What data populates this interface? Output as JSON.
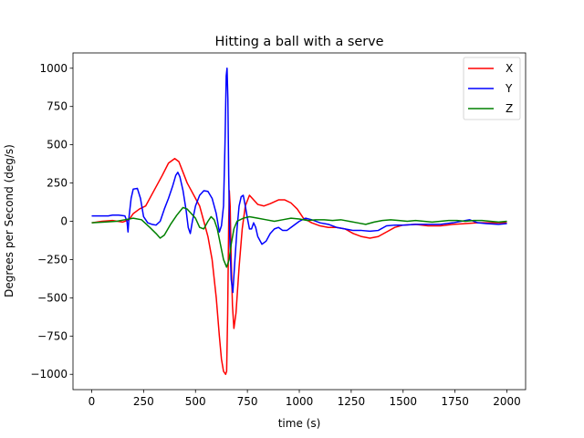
{
  "chart_data": {
    "type": "line",
    "title": "Hitting a ball with a serve",
    "xlabel": "time (s)",
    "ylabel": "Degrees per Second (deg/s)",
    "xlim": [
      -90,
      2090
    ],
    "ylim": [
      -1100,
      1100
    ],
    "xticks": [
      0,
      250,
      500,
      750,
      1000,
      1250,
      1500,
      1750,
      2000
    ],
    "yticks": [
      -1000,
      -750,
      -500,
      -250,
      0,
      250,
      500,
      750,
      1000
    ],
    "yticklabels": [
      "−1000",
      "−750",
      "−500",
      "−250",
      "0",
      "250",
      "500",
      "750",
      "1000"
    ],
    "grid": false,
    "legend_position": "top-right",
    "series": [
      {
        "name": "X",
        "color": "#ff0000",
        "points": [
          [
            0,
            -10
          ],
          [
            50,
            0
          ],
          [
            100,
            5
          ],
          [
            150,
            -5
          ],
          [
            180,
            10
          ],
          [
            200,
            50
          ],
          [
            230,
            80
          ],
          [
            260,
            100
          ],
          [
            300,
            200
          ],
          [
            340,
            300
          ],
          [
            370,
            380
          ],
          [
            400,
            410
          ],
          [
            420,
            390
          ],
          [
            440,
            320
          ],
          [
            460,
            250
          ],
          [
            480,
            200
          ],
          [
            500,
            150
          ],
          [
            520,
            100
          ],
          [
            540,
            0
          ],
          [
            560,
            -100
          ],
          [
            580,
            -250
          ],
          [
            600,
            -500
          ],
          [
            615,
            -750
          ],
          [
            625,
            -900
          ],
          [
            635,
            -980
          ],
          [
            645,
            -1000
          ],
          [
            650,
            -980
          ],
          [
            655,
            -600
          ],
          [
            660,
            0
          ],
          [
            663,
            200
          ],
          [
            667,
            100
          ],
          [
            672,
            -250
          ],
          [
            678,
            -550
          ],
          [
            685,
            -700
          ],
          [
            695,
            -600
          ],
          [
            710,
            -300
          ],
          [
            725,
            -50
          ],
          [
            740,
            100
          ],
          [
            760,
            170
          ],
          [
            780,
            140
          ],
          [
            800,
            110
          ],
          [
            830,
            100
          ],
          [
            860,
            115
          ],
          [
            900,
            140
          ],
          [
            930,
            140
          ],
          [
            960,
            120
          ],
          [
            990,
            80
          ],
          [
            1020,
            20
          ],
          [
            1060,
            -10
          ],
          [
            1100,
            -30
          ],
          [
            1140,
            -40
          ],
          [
            1180,
            -40
          ],
          [
            1220,
            -50
          ],
          [
            1260,
            -80
          ],
          [
            1300,
            -100
          ],
          [
            1340,
            -110
          ],
          [
            1380,
            -100
          ],
          [
            1420,
            -70
          ],
          [
            1460,
            -40
          ],
          [
            1500,
            -25
          ],
          [
            1560,
            -20
          ],
          [
            1620,
            -30
          ],
          [
            1680,
            -30
          ],
          [
            1740,
            -20
          ],
          [
            1800,
            -15
          ],
          [
            1860,
            -10
          ],
          [
            1920,
            -10
          ],
          [
            2000,
            -10
          ]
        ]
      },
      {
        "name": "Y",
        "color": "#0000ff",
        "points": [
          [
            0,
            35
          ],
          [
            50,
            35
          ],
          [
            80,
            35
          ],
          [
            100,
            40
          ],
          [
            130,
            40
          ],
          [
            160,
            35
          ],
          [
            170,
            0
          ],
          [
            175,
            -70
          ],
          [
            180,
            30
          ],
          [
            190,
            150
          ],
          [
            200,
            210
          ],
          [
            220,
            215
          ],
          [
            235,
            150
          ],
          [
            250,
            30
          ],
          [
            270,
            -10
          ],
          [
            290,
            -20
          ],
          [
            310,
            -25
          ],
          [
            330,
            0
          ],
          [
            350,
            80
          ],
          [
            370,
            150
          ],
          [
            390,
            230
          ],
          [
            405,
            300
          ],
          [
            415,
            320
          ],
          [
            425,
            290
          ],
          [
            440,
            200
          ],
          [
            455,
            70
          ],
          [
            465,
            -40
          ],
          [
            475,
            -80
          ],
          [
            485,
            0
          ],
          [
            500,
            100
          ],
          [
            520,
            170
          ],
          [
            540,
            200
          ],
          [
            560,
            195
          ],
          [
            580,
            150
          ],
          [
            600,
            50
          ],
          [
            615,
            -70
          ],
          [
            625,
            -30
          ],
          [
            635,
            100
          ],
          [
            642,
            500
          ],
          [
            648,
            950
          ],
          [
            652,
            1000
          ],
          [
            656,
            800
          ],
          [
            660,
            300
          ],
          [
            665,
            -100
          ],
          [
            672,
            -380
          ],
          [
            680,
            -465
          ],
          [
            690,
            -250
          ],
          [
            700,
            -50
          ],
          [
            710,
            100
          ],
          [
            720,
            160
          ],
          [
            730,
            170
          ],
          [
            740,
            100
          ],
          [
            750,
            20
          ],
          [
            760,
            -50
          ],
          [
            770,
            -50
          ],
          [
            780,
            -10
          ],
          [
            790,
            -40
          ],
          [
            800,
            -100
          ],
          [
            820,
            -150
          ],
          [
            840,
            -130
          ],
          [
            860,
            -80
          ],
          [
            880,
            -50
          ],
          [
            900,
            -40
          ],
          [
            920,
            -60
          ],
          [
            940,
            -60
          ],
          [
            960,
            -40
          ],
          [
            980,
            -20
          ],
          [
            1000,
            0
          ],
          [
            1030,
            20
          ],
          [
            1060,
            10
          ],
          [
            1100,
            -10
          ],
          [
            1140,
            -20
          ],
          [
            1180,
            -40
          ],
          [
            1220,
            -50
          ],
          [
            1260,
            -60
          ],
          [
            1300,
            -60
          ],
          [
            1340,
            -65
          ],
          [
            1380,
            -60
          ],
          [
            1420,
            -30
          ],
          [
            1460,
            -25
          ],
          [
            1500,
            -25
          ],
          [
            1560,
            -20
          ],
          [
            1620,
            -20
          ],
          [
            1680,
            -20
          ],
          [
            1740,
            -10
          ],
          [
            1780,
            0
          ],
          [
            1820,
            10
          ],
          [
            1860,
            -10
          ],
          [
            1900,
            -15
          ],
          [
            1960,
            -20
          ],
          [
            2000,
            -15
          ]
        ]
      },
      {
        "name": "Z",
        "color": "#008000",
        "points": [
          [
            0,
            -10
          ],
          [
            60,
            -5
          ],
          [
            120,
            0
          ],
          [
            160,
            10
          ],
          [
            200,
            20
          ],
          [
            240,
            10
          ],
          [
            280,
            -40
          ],
          [
            310,
            -80
          ],
          [
            330,
            -110
          ],
          [
            350,
            -90
          ],
          [
            380,
            -20
          ],
          [
            410,
            40
          ],
          [
            440,
            90
          ],
          [
            460,
            80
          ],
          [
            480,
            50
          ],
          [
            500,
            20
          ],
          [
            520,
            -40
          ],
          [
            540,
            -50
          ],
          [
            560,
            0
          ],
          [
            575,
            30
          ],
          [
            590,
            10
          ],
          [
            605,
            -50
          ],
          [
            620,
            -150
          ],
          [
            635,
            -250
          ],
          [
            650,
            -300
          ],
          [
            662,
            -250
          ],
          [
            672,
            -150
          ],
          [
            685,
            -50
          ],
          [
            700,
            0
          ],
          [
            730,
            20
          ],
          [
            760,
            30
          ],
          [
            800,
            20
          ],
          [
            840,
            10
          ],
          [
            880,
            0
          ],
          [
            920,
            10
          ],
          [
            960,
            20
          ],
          [
            1000,
            15
          ],
          [
            1040,
            5
          ],
          [
            1080,
            10
          ],
          [
            1120,
            10
          ],
          [
            1160,
            5
          ],
          [
            1200,
            10
          ],
          [
            1240,
            0
          ],
          [
            1280,
            -10
          ],
          [
            1320,
            -20
          ],
          [
            1360,
            -5
          ],
          [
            1400,
            5
          ],
          [
            1440,
            10
          ],
          [
            1480,
            5
          ],
          [
            1520,
            0
          ],
          [
            1560,
            5
          ],
          [
            1600,
            0
          ],
          [
            1640,
            -5
          ],
          [
            1680,
            0
          ],
          [
            1720,
            5
          ],
          [
            1760,
            5
          ],
          [
            1800,
            0
          ],
          [
            1840,
            5
          ],
          [
            1880,
            5
          ],
          [
            1920,
            0
          ],
          [
            1960,
            -5
          ],
          [
            2000,
            0
          ]
        ]
      }
    ]
  }
}
